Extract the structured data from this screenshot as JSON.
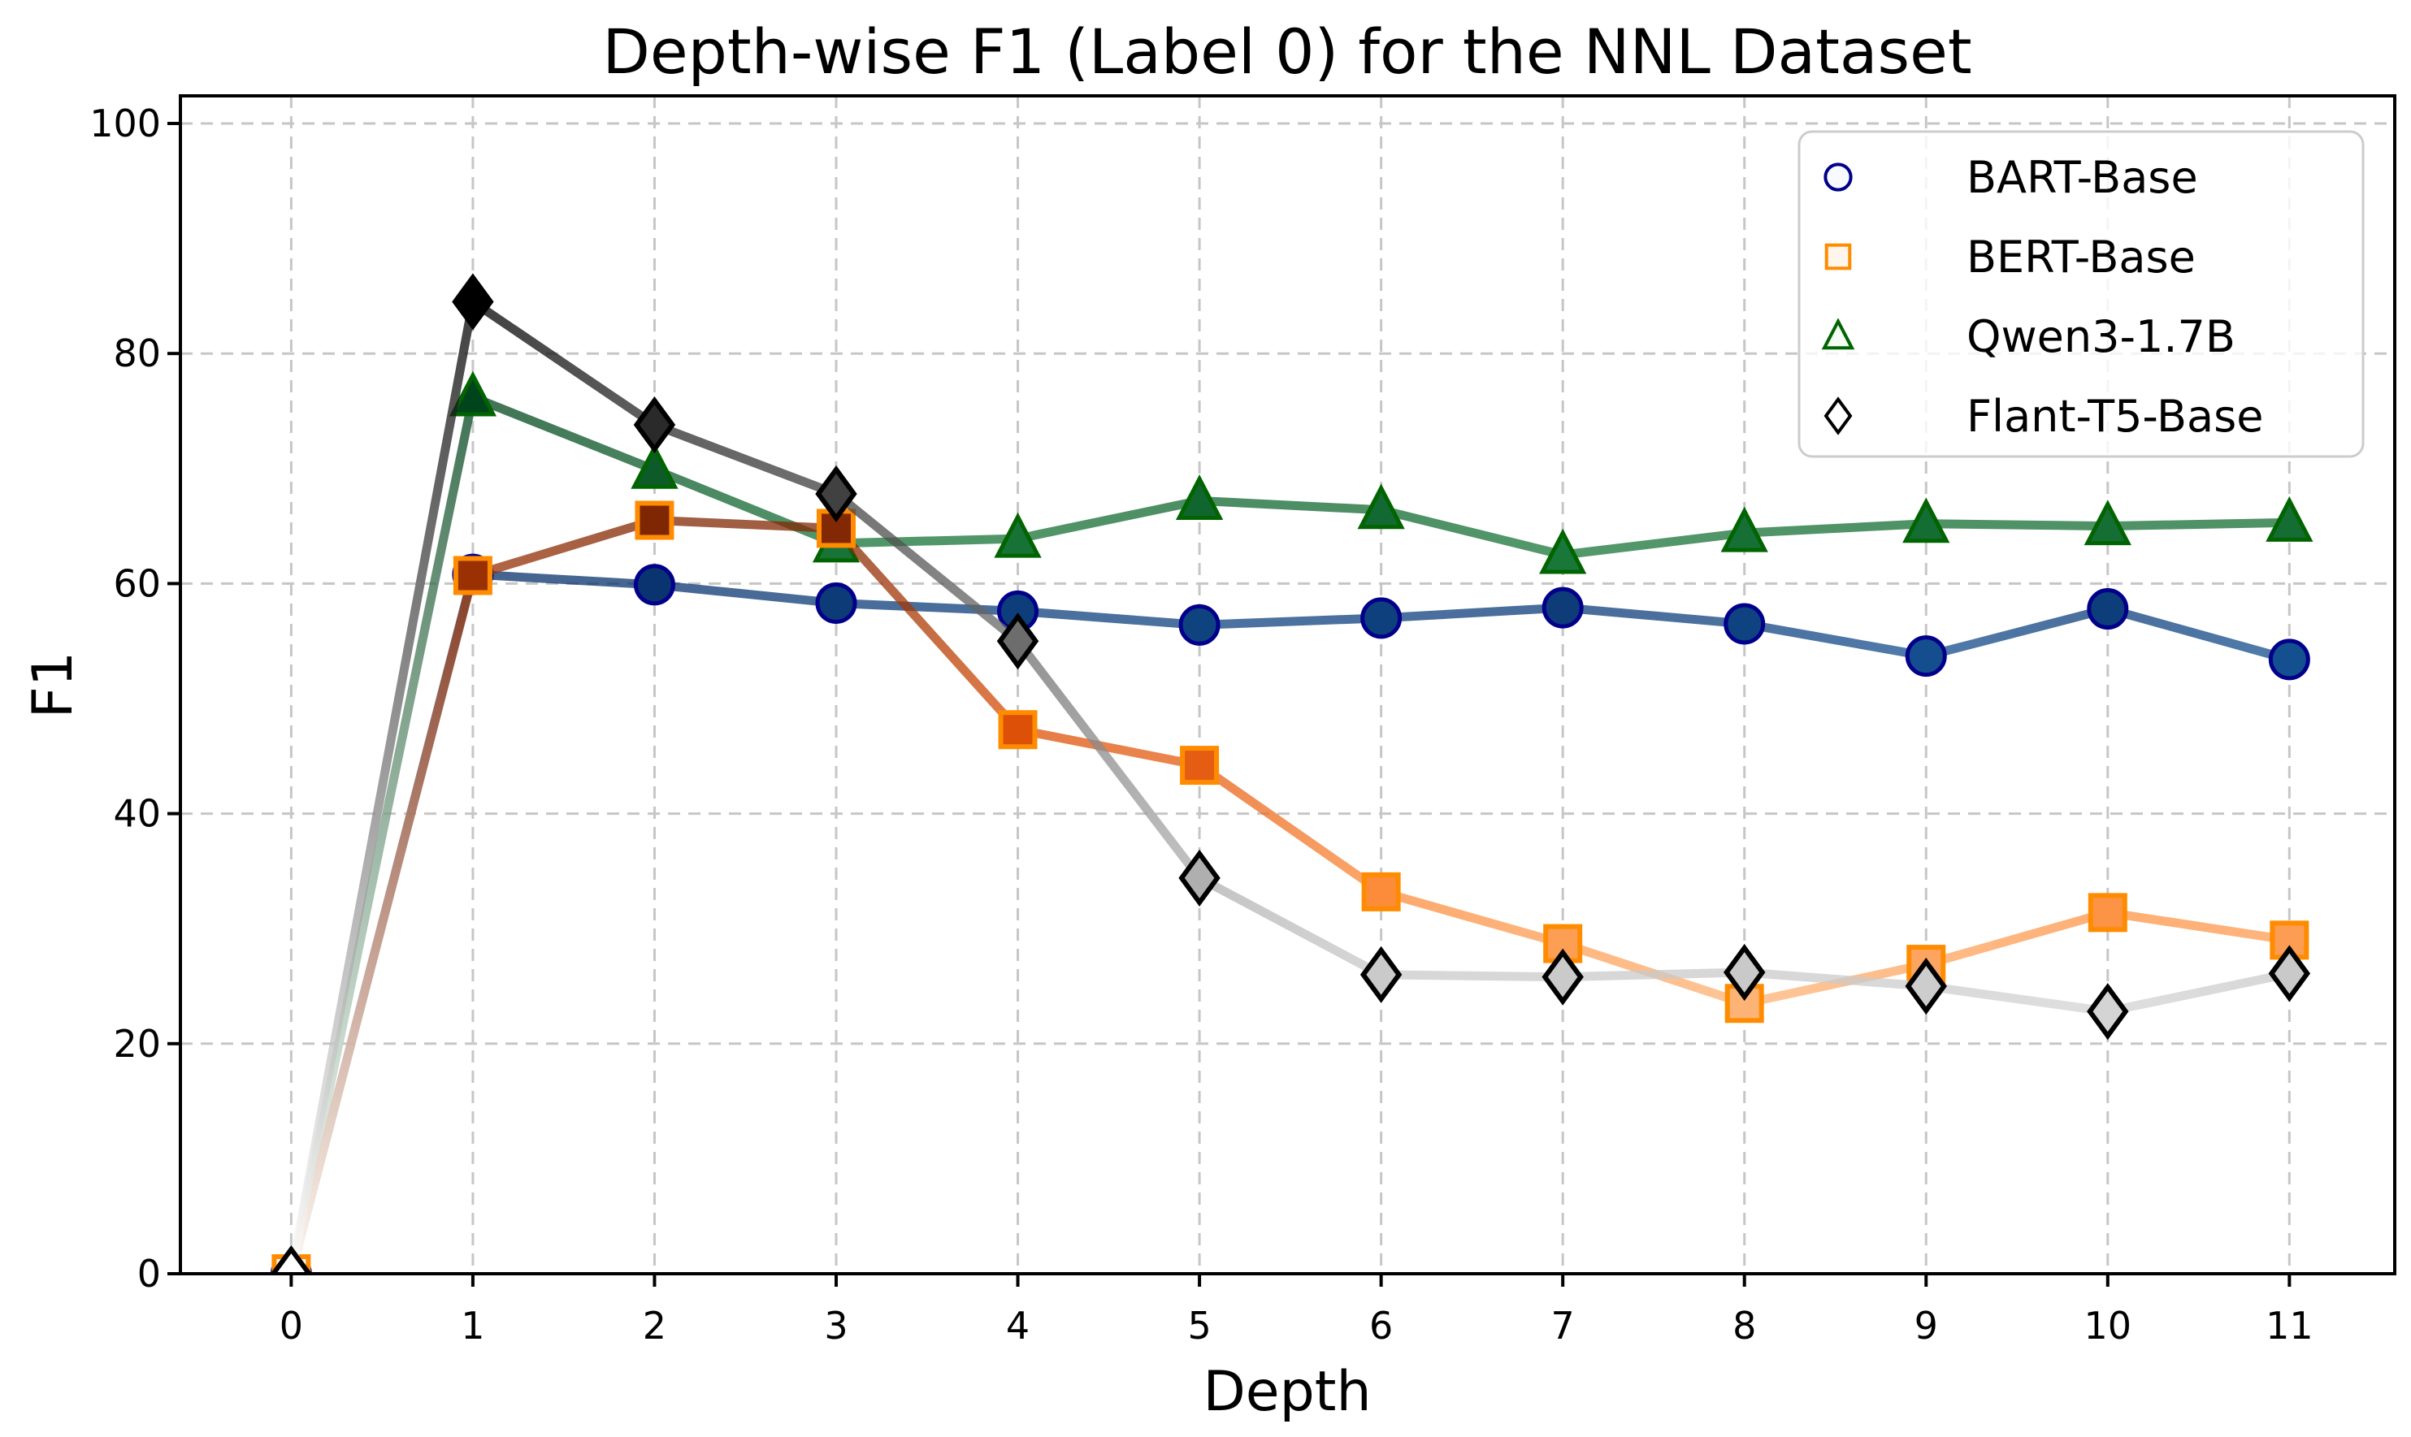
{
  "figure": {
    "background": "#ffffff",
    "spine_color": "#000000",
    "text_color": "#000000"
  },
  "chart_data": {
    "type": "line",
    "title": "Depth-wise F1 (Label 0) for the NNL Dataset",
    "xlabel": "Depth",
    "ylabel": "F1",
    "x": [
      0,
      1,
      2,
      3,
      4,
      5,
      6,
      7,
      8,
      9,
      10,
      11
    ],
    "xticks": [
      0,
      1,
      2,
      3,
      4,
      5,
      6,
      7,
      8,
      9,
      10,
      11
    ],
    "yticks": [
      0,
      20,
      40,
      60,
      80,
      100
    ],
    "xlim": [
      -0.61,
      11.58
    ],
    "ylim": [
      0,
      102.4
    ],
    "grid": "dashed",
    "grid_color": "#c6c6c6",
    "line_width": 11,
    "line_opacity": 0.75,
    "value_shading": "marker fill and segment color scale with F1 value: light at 0, darkest at each series max",
    "series": [
      {
        "name": "BART-Base",
        "marker": "circle",
        "edge_color": "#00008b",
        "colormap": [
          "#f7fbff",
          "#c6dbef",
          "#6baed6",
          "#2171b5",
          "#08306b"
        ],
        "values": [
          0,
          60.8,
          59.9,
          58.3,
          57.6,
          56.4,
          57.0,
          57.9,
          56.5,
          53.7,
          57.8,
          53.4
        ],
        "z": 1
      },
      {
        "name": "BERT-Base",
        "marker": "square",
        "edge_color": "#ff8c00",
        "colormap": [
          "#fff5eb",
          "#fdd0a2",
          "#fd8d3c",
          "#d94801",
          "#7f2704"
        ],
        "values": [
          0,
          60.7,
          65.5,
          64.8,
          47.3,
          44.2,
          33.2,
          28.7,
          23.5,
          26.9,
          31.4,
          29.0
        ],
        "z": 3
      },
      {
        "name": "Qwen3-1.7B",
        "marker": "triangle",
        "edge_color": "#006400",
        "colormap": [
          "#f7fcf5",
          "#c7e9c0",
          "#74c476",
          "#238b45",
          "#00441b"
        ],
        "values": [
          0,
          76.2,
          69.9,
          63.5,
          63.9,
          67.2,
          66.4,
          62.5,
          64.4,
          65.2,
          65.0,
          65.3
        ],
        "z": 2
      },
      {
        "name": "Flant-T5-Base",
        "marker": "diamond",
        "edge_color": "#000000",
        "colormap": [
          "#ffffff",
          "#d9d9d9",
          "#969696",
          "#525252",
          "#000000"
        ],
        "values": [
          0,
          84.5,
          73.8,
          67.8,
          55.0,
          34.4,
          26.0,
          25.8,
          26.2,
          25.0,
          22.8,
          26.1
        ],
        "z": 4
      }
    ],
    "legend": {
      "position": "upper right",
      "border_color": "#cccccc",
      "background": "#ffffff",
      "background_opacity": 0.8
    }
  }
}
